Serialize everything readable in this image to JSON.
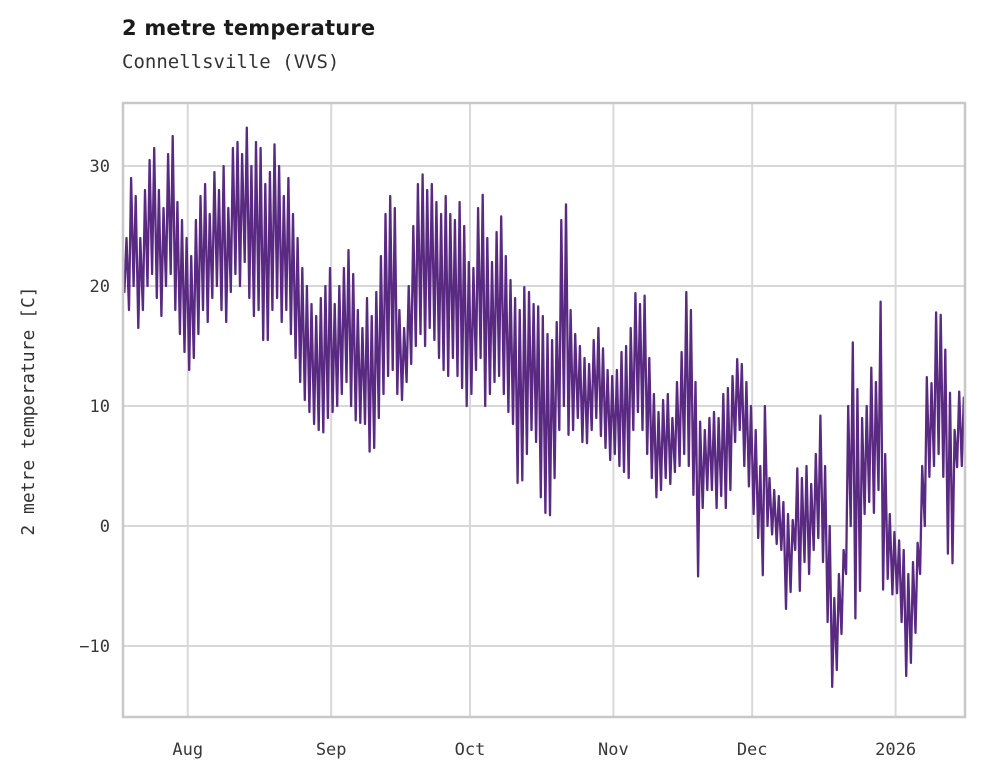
{
  "header": {
    "title": "2 metre temperature",
    "subtitle": "Connellsville (VVS)"
  },
  "colors": {
    "line": "#5a2a82",
    "grid": "#d8d8d8",
    "border": "#c8c8c8",
    "title_text": "#1a1a1a",
    "axis_text": "#383838",
    "background": "#ffffff"
  },
  "chart_data": {
    "type": "line",
    "title": "2 metre temperature",
    "subtitle": "Connellsville (VVS)",
    "series_name": "2 metre temperature",
    "xlabel": "",
    "ylabel": "2 metre temperature [C]",
    "units": "C",
    "grid": true,
    "legend": "none",
    "ylim": [
      -15.92,
      35.25
    ],
    "yticks": [
      {
        "value": -10,
        "label": "−10"
      },
      {
        "value": 0,
        "label": "0"
      },
      {
        "value": 10,
        "label": "10"
      },
      {
        "value": 20,
        "label": "20"
      },
      {
        "value": 30,
        "label": "30"
      }
    ],
    "x_total_days": 182,
    "x_span": "2025-07-18 to 2026-01-16",
    "xticks": [
      {
        "label": "Aug",
        "day": 14
      },
      {
        "label": "Sep",
        "day": 45
      },
      {
        "label": "Oct",
        "day": 75
      },
      {
        "label": "Nov",
        "day": 106
      },
      {
        "label": "Dec",
        "day": 136
      },
      {
        "label": "2026",
        "day": 167
      }
    ],
    "sampling_note": "hourly series summarized as daily min/max envelope",
    "daily_format": [
      "date",
      "min_c",
      "max_c"
    ],
    "daily": [
      [
        "Jul 18",
        19.5,
        24
      ],
      [
        "Jul 19",
        18,
        29
      ],
      [
        "Jul 20",
        20,
        27.5
      ],
      [
        "Jul 21",
        16.5,
        24
      ],
      [
        "Jul 22",
        18,
        28
      ],
      [
        "Jul 23",
        20,
        30.5
      ],
      [
        "Jul 24",
        21,
        31.5
      ],
      [
        "Jul 25",
        19,
        28
      ],
      [
        "Jul 26",
        17.5,
        26.5
      ],
      [
        "Jul 27",
        20,
        31
      ],
      [
        "Jul 28",
        21,
        32.5
      ],
      [
        "Jul 29",
        18,
        27
      ],
      [
        "Jul 30",
        16,
        25.5
      ],
      [
        "Jul 31",
        14.5,
        24
      ],
      [
        "Aug 1",
        13,
        22.5
      ],
      [
        "Aug 2",
        14,
        25.5
      ],
      [
        "Aug 3",
        16,
        27.5
      ],
      [
        "Aug 4",
        18,
        28.5
      ],
      [
        "Aug 5",
        17,
        26
      ],
      [
        "Aug 6",
        19,
        29.5
      ],
      [
        "Aug 7",
        20,
        28
      ],
      [
        "Aug 8",
        18,
        30
      ],
      [
        "Aug 9",
        17,
        26.5
      ],
      [
        "Aug 10",
        19.5,
        31.5
      ],
      [
        "Aug 11",
        21,
        32
      ],
      [
        "Aug 12",
        20,
        31
      ],
      [
        "Aug 13",
        22,
        33.2
      ],
      [
        "Aug 14",
        19,
        30
      ],
      [
        "Aug 15",
        17.5,
        32
      ],
      [
        "Aug 16",
        18,
        31.5
      ],
      [
        "Aug 17",
        15.5,
        28.5
      ],
      [
        "Aug 18",
        15.5,
        29.5
      ],
      [
        "Aug 19",
        18,
        31.8
      ],
      [
        "Aug 20",
        19,
        30
      ],
      [
        "Aug 21",
        17,
        27.5
      ],
      [
        "Aug 22",
        18,
        29
      ],
      [
        "Aug 23",
        16,
        26
      ],
      [
        "Aug 24",
        14,
        24
      ],
      [
        "Aug 25",
        12,
        21.5
      ],
      [
        "Aug 26",
        10.5,
        20
      ],
      [
        "Aug 27",
        9.5,
        18.5
      ],
      [
        "Aug 28",
        8.5,
        17.5
      ],
      [
        "Aug 29",
        8,
        19
      ],
      [
        "Aug 30",
        7.8,
        20
      ],
      [
        "Aug 31",
        9,
        21.5
      ],
      [
        "Sep 1",
        9.5,
        18.5
      ],
      [
        "Sep 2",
        10,
        20
      ],
      [
        "Sep 3",
        11,
        21.5
      ],
      [
        "Sep 4",
        12,
        23
      ],
      [
        "Sep 5",
        10,
        21
      ],
      [
        "Sep 6",
        8.8,
        18
      ],
      [
        "Sep 7",
        8.6,
        16.5
      ],
      [
        "Sep 8",
        8.5,
        19
      ],
      [
        "Sep 9",
        6.2,
        17.5
      ],
      [
        "Sep 10",
        6.5,
        19.5
      ],
      [
        "Sep 11",
        9,
        22.5
      ],
      [
        "Sep 12",
        11,
        26
      ],
      [
        "Sep 13",
        12.5,
        27.5
      ],
      [
        "Sep 14",
        13,
        26.5
      ],
      [
        "Sep 15",
        11,
        18
      ],
      [
        "Sep 16",
        10.5,
        16.5
      ],
      [
        "Sep 17",
        12,
        20
      ],
      [
        "Sep 18",
        13.5,
        25
      ],
      [
        "Sep 19",
        15,
        28.5
      ],
      [
        "Sep 20",
        16,
        29.3
      ],
      [
        "Sep 21",
        15,
        28
      ],
      [
        "Sep 22",
        16.5,
        28.5
      ],
      [
        "Sep 23",
        15.5,
        27
      ],
      [
        "Sep 24",
        14,
        26
      ],
      [
        "Sep 25",
        13,
        27.5
      ],
      [
        "Sep 26",
        12.5,
        26
      ],
      [
        "Sep 27",
        14,
        25.5
      ],
      [
        "Sep 28",
        12.5,
        27
      ],
      [
        "Sep 29",
        11.5,
        25
      ],
      [
        "Sep 30",
        10,
        22
      ],
      [
        "Oct 1",
        11,
        21.5
      ],
      [
        "Oct 2",
        13,
        26.5
      ],
      [
        "Oct 3",
        14,
        27.6
      ],
      [
        "Oct 4",
        10,
        24
      ],
      [
        "Oct 5",
        11,
        22
      ],
      [
        "Oct 6",
        12,
        24.5
      ],
      [
        "Oct 7",
        12.5,
        25.8
      ],
      [
        "Oct 8",
        11,
        22.5
      ],
      [
        "Oct 9",
        9.5,
        20.5
      ],
      [
        "Oct 10",
        8.5,
        19
      ],
      [
        "Oct 11",
        3.6,
        18
      ],
      [
        "Oct 12",
        3.8,
        19.9
      ],
      [
        "Oct 13",
        6,
        19.5
      ],
      [
        "Oct 14",
        8,
        18.5
      ],
      [
        "Oct 15",
        7,
        18.3
      ],
      [
        "Oct 16",
        2.4,
        17.5
      ],
      [
        "Oct 17",
        1.1,
        16
      ],
      [
        "Oct 18",
        0.9,
        15.5
      ],
      [
        "Oct 19",
        4,
        17
      ],
      [
        "Oct 20",
        8,
        25.5
      ],
      [
        "Oct 21",
        10,
        26.8
      ],
      [
        "Oct 22",
        7.6,
        18
      ],
      [
        "Oct 23",
        8,
        16
      ],
      [
        "Oct 24",
        9,
        15
      ],
      [
        "Oct 25",
        7,
        14
      ],
      [
        "Oct 26",
        6.9,
        13.5
      ],
      [
        "Oct 27",
        8,
        15.5
      ],
      [
        "Oct 28",
        9,
        16.5
      ],
      [
        "Oct 29",
        7.5,
        14.8
      ],
      [
        "Oct 30",
        6.5,
        13
      ],
      [
        "Oct 31",
        5.5,
        12.5
      ],
      [
        "Nov 1",
        6,
        13
      ],
      [
        "Nov 2",
        5,
        14.5
      ],
      [
        "Nov 3",
        4.5,
        15
      ],
      [
        "Nov 4",
        4,
        16.5
      ],
      [
        "Nov 5",
        8,
        19.4
      ],
      [
        "Nov 6",
        9.5,
        18.5
      ],
      [
        "Nov 7",
        8,
        19.2
      ],
      [
        "Nov 8",
        6,
        14
      ],
      [
        "Nov 9",
        4,
        11
      ],
      [
        "Nov 10",
        2.4,
        9.5
      ],
      [
        "Nov 11",
        3,
        10.5
      ],
      [
        "Nov 12",
        4,
        11
      ],
      [
        "Nov 13",
        3.5,
        9
      ],
      [
        "Nov 14",
        4.5,
        12
      ],
      [
        "Nov 15",
        5,
        14.5
      ],
      [
        "Nov 16",
        6,
        19.5
      ],
      [
        "Nov 17",
        5,
        18
      ],
      [
        "Nov 18",
        2.6,
        12
      ],
      [
        "Nov 19",
        -4.2,
        8.7
      ],
      [
        "Nov 20",
        1.5,
        8
      ],
      [
        "Nov 21",
        3,
        9
      ],
      [
        "Nov 22",
        3,
        9.5
      ],
      [
        "Nov 23",
        1.5,
        9
      ],
      [
        "Nov 24",
        2.5,
        11
      ],
      [
        "Nov 25",
        1.5,
        11.5
      ],
      [
        "Nov 26",
        3,
        12.5
      ],
      [
        "Nov 27",
        7,
        13.9
      ],
      [
        "Nov 28",
        8,
        13.5
      ],
      [
        "Nov 29",
        5,
        12
      ],
      [
        "Nov 30",
        3.3,
        10
      ],
      [
        "Dec 1",
        1,
        8
      ],
      [
        "Dec 2",
        -1,
        5
      ],
      [
        "Dec 3",
        -4.1,
        10
      ],
      [
        "Dec 4",
        0,
        4
      ],
      [
        "Dec 5",
        -0.7,
        3
      ],
      [
        "Dec 6",
        -1.5,
        2.5
      ],
      [
        "Dec 7",
        -2,
        2
      ],
      [
        "Dec 8",
        -6.9,
        1
      ],
      [
        "Dec 9",
        -5.5,
        0.5
      ],
      [
        "Dec 10",
        -2,
        4.8
      ],
      [
        "Dec 11",
        -5.4,
        4
      ],
      [
        "Dec 12",
        -3,
        5
      ],
      [
        "Dec 13",
        -4,
        3.5
      ],
      [
        "Dec 14",
        -2,
        6
      ],
      [
        "Dec 15",
        -1,
        9.2
      ],
      [
        "Dec 16",
        -3,
        5
      ],
      [
        "Dec 17",
        -8,
        0
      ],
      [
        "Dec 18",
        -13.4,
        -6
      ],
      [
        "Dec 19",
        -12,
        -4
      ],
      [
        "Dec 20",
        -9,
        -2
      ],
      [
        "Dec 21",
        -4,
        10
      ],
      [
        "Dec 22",
        0,
        15.3
      ],
      [
        "Dec 23",
        -7.7,
        11.4
      ],
      [
        "Dec 24",
        -5.4,
        9
      ],
      [
        "Dec 25",
        1,
        10
      ],
      [
        "Dec 26",
        2,
        13.2
      ],
      [
        "Dec 27",
        1.1,
        12
      ],
      [
        "Dec 28",
        3,
        18.7
      ],
      [
        "Dec 29",
        -5.3,
        6
      ],
      [
        "Dec 30",
        -4.4,
        1
      ],
      [
        "Dec 31",
        -5.7,
        -0.5
      ],
      [
        "Jan 1",
        -5.6,
        -1.2
      ],
      [
        "Jan 2",
        -8,
        -2
      ],
      [
        "Jan 3",
        -12.5,
        -4
      ],
      [
        "Jan 4",
        -11.4,
        -3
      ],
      [
        "Jan 5",
        -8.9,
        -1.4
      ],
      [
        "Jan 6",
        -4,
        5
      ],
      [
        "Jan 7",
        0,
        12.4
      ],
      [
        "Jan 8",
        4.1,
        11.9
      ],
      [
        "Jan 9",
        5,
        17.8
      ],
      [
        "Jan 10",
        6,
        17.6
      ],
      [
        "Jan 11",
        4.1,
        14.7
      ],
      [
        "Jan 12",
        -2.3,
        11.1
      ],
      [
        "Jan 13",
        -3.1,
        8
      ],
      [
        "Jan 14",
        4.9,
        11.2
      ],
      [
        "Jan 15",
        5,
        10.7
      ]
    ]
  }
}
